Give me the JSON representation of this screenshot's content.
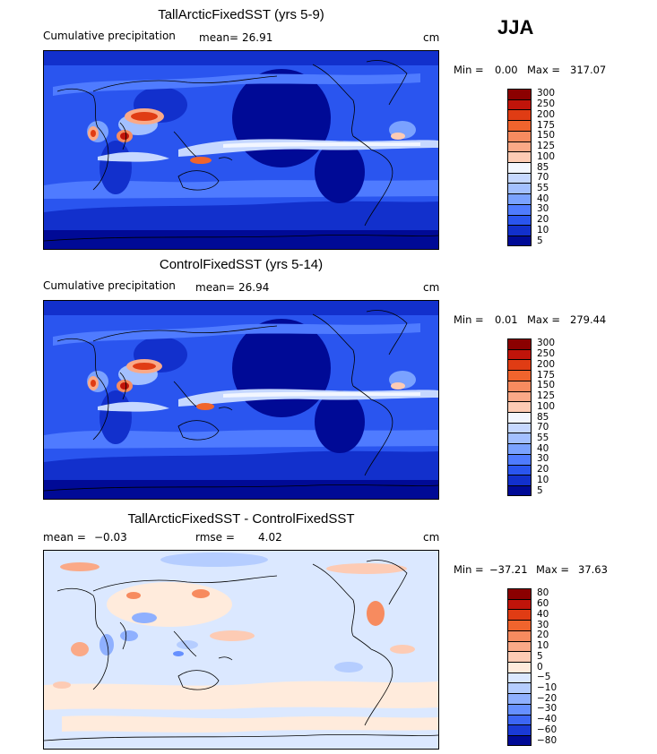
{
  "season": "JJA",
  "panels": [
    {
      "id": "tall",
      "title": "TallArcticFixedSST (yrs 5-9)",
      "left_label": "Cumulative precipitation",
      "stat1_label": "mean=",
      "stat1_value": "26.91",
      "units": "cm",
      "min_label": "Min =",
      "min_value": "0.00",
      "max_label": "Max =",
      "max_value": "317.07",
      "levels": [
        "300",
        "250",
        "200",
        "175",
        "150",
        "125",
        "100",
        "85",
        "70",
        "55",
        "40",
        "30",
        "20",
        "10",
        "5"
      ],
      "colors": [
        "#8b0000",
        "#c0140a",
        "#e03c14",
        "#f0642d",
        "#f78b5f",
        "#faa987",
        "#fdcbb4",
        "#f2f6ff",
        "#c6d8ff",
        "#a3c0ff",
        "#7aa2ff",
        "#4f7bff",
        "#2a55ef",
        "#1230cc",
        "#000a96"
      ]
    },
    {
      "id": "control",
      "title": "ControlFixedSST (yrs 5-14)",
      "left_label": "Cumulative precipitation",
      "stat1_label": "mean=",
      "stat1_value": "26.94",
      "units": "cm",
      "min_label": "Min =",
      "min_value": "0.01",
      "max_label": "Max =",
      "max_value": "279.44",
      "levels": [
        "300",
        "250",
        "200",
        "175",
        "150",
        "125",
        "100",
        "85",
        "70",
        "55",
        "40",
        "30",
        "20",
        "10",
        "5"
      ],
      "colors": [
        "#8b0000",
        "#c0140a",
        "#e03c14",
        "#f0642d",
        "#f78b5f",
        "#faa987",
        "#fdcbb4",
        "#f2f6ff",
        "#c6d8ff",
        "#a3c0ff",
        "#7aa2ff",
        "#4f7bff",
        "#2a55ef",
        "#1230cc",
        "#000a96"
      ]
    },
    {
      "id": "diff",
      "title": "TallArcticFixedSST - ControlFixedSST",
      "left_label": "mean =",
      "stat1_label": "",
      "stat1_value": "-0.03",
      "stat2_label": "rmse =",
      "stat2_value": "4.02",
      "units": "cm",
      "min_label": "Min =",
      "min_value": "-37.21",
      "max_label": "Max =",
      "max_value": "37.63",
      "levels": [
        "80",
        "60",
        "40",
        "30",
        "20",
        "10",
        "5",
        "0",
        "-5",
        "-10",
        "-20",
        "-30",
        "-40",
        "-60",
        "-80"
      ],
      "colors": [
        "#8b0000",
        "#c0140a",
        "#e03c14",
        "#f0642d",
        "#f78b5f",
        "#faa987",
        "#fdcbb4",
        "#ffebdc",
        "#dbe8ff",
        "#b5cdff",
        "#8fb0ff",
        "#6690ff",
        "#3c66f5",
        "#1a3ad6",
        "#000a96"
      ]
    }
  ],
  "chart_data": [
    {
      "type": "heatmap",
      "title": "TallArcticFixedSST (yrs 5-9)",
      "variable": "Cumulative precipitation",
      "units": "cm",
      "mean": 26.91,
      "min": 0.0,
      "max": 317.07,
      "colorbar_levels": [
        5,
        10,
        20,
        30,
        40,
        55,
        70,
        85,
        100,
        125,
        150,
        175,
        200,
        250,
        300
      ]
    },
    {
      "type": "heatmap",
      "title": "ControlFixedSST (yrs 5-14)",
      "variable": "Cumulative precipitation",
      "units": "cm",
      "mean": 26.94,
      "min": 0.01,
      "max": 279.44,
      "colorbar_levels": [
        5,
        10,
        20,
        30,
        40,
        55,
        70,
        85,
        100,
        125,
        150,
        175,
        200,
        250,
        300
      ]
    },
    {
      "type": "heatmap",
      "title": "TallArcticFixedSST - ControlFixedSST",
      "units": "cm",
      "mean": -0.03,
      "rmse": 4.02,
      "min": -37.21,
      "max": 37.63,
      "colorbar_levels": [
        -80,
        -60,
        -40,
        -30,
        -20,
        -10,
        -5,
        0,
        5,
        10,
        20,
        30,
        40,
        60,
        80
      ]
    }
  ]
}
